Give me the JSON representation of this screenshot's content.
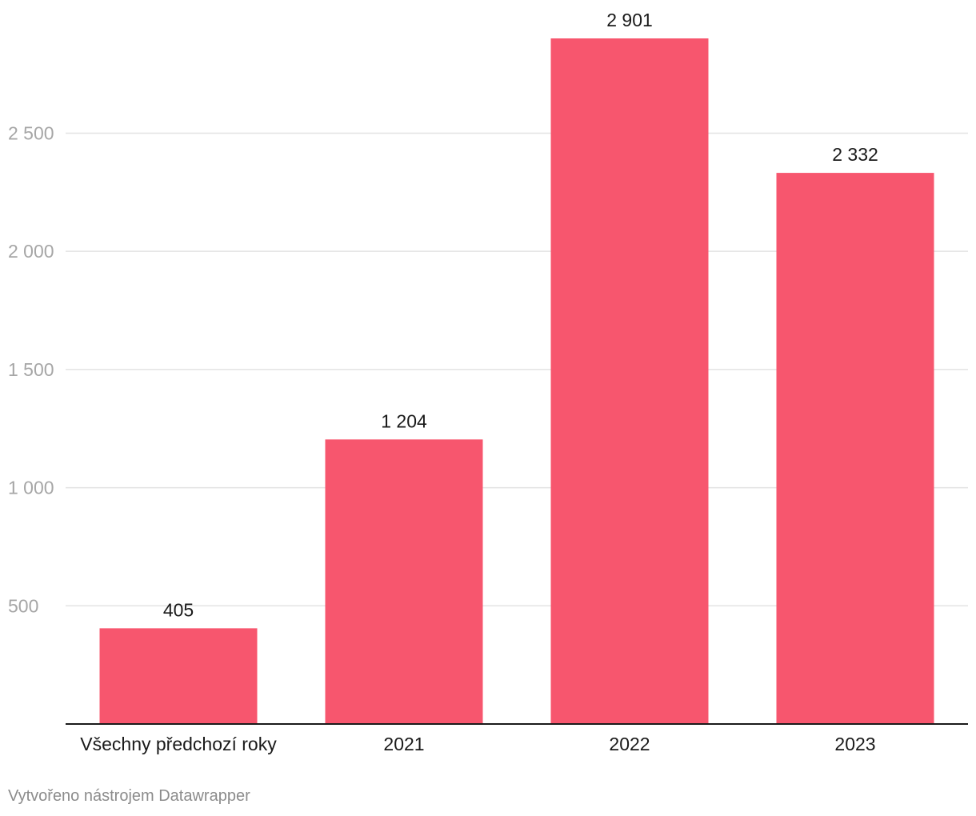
{
  "chart_data": {
    "type": "bar",
    "categories": [
      "Všechny předchozí roky",
      "2021",
      "2022",
      "2023"
    ],
    "values": [
      405,
      1204,
      2901,
      2332
    ],
    "value_labels": [
      "405",
      "1 204",
      "2 901",
      "2 332"
    ],
    "ylim": [
      0,
      2901
    ],
    "yticks": [
      500,
      1000,
      1500,
      2000,
      2500
    ],
    "ytick_labels": [
      "500",
      "1 000",
      "1 500",
      "2 000",
      "2 500"
    ],
    "grid": true,
    "bar_color": "#f7566e",
    "title": "",
    "xlabel": "",
    "ylabel": ""
  },
  "footer": {
    "credit": "Vytvořeno nástrojem Datawrapper"
  }
}
